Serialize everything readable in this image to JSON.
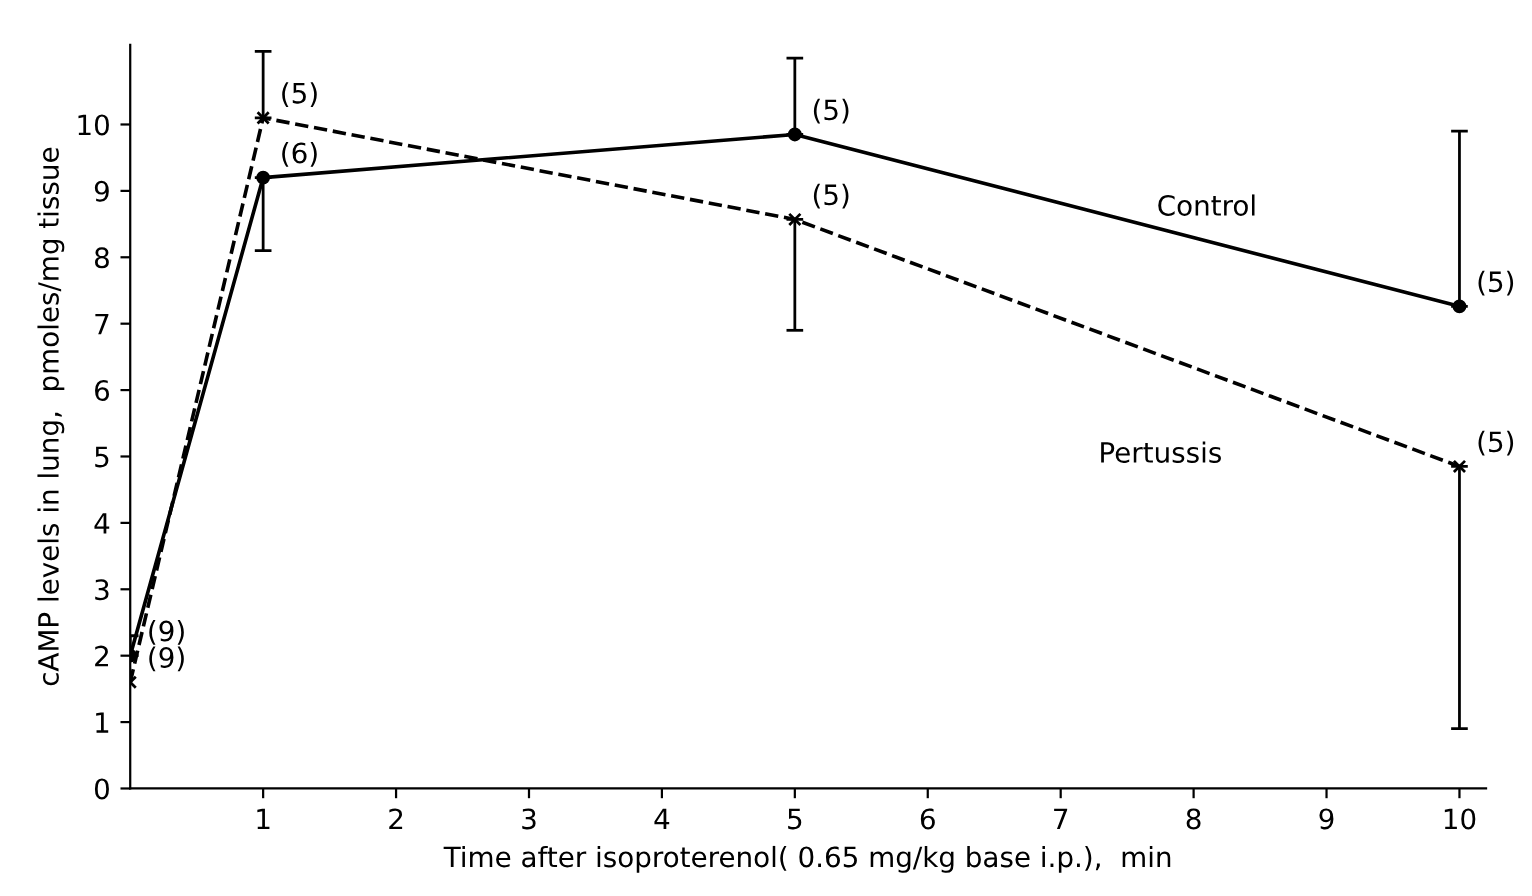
{
  "chart_data": {
    "type": "line",
    "xlabel": "Time after isoproterenol( 0.65 mg/kg base i.p.),  min",
    "ylabel": "cAMP levels in lung,  pmoles/mg tissue",
    "x": [
      0,
      1,
      5,
      10
    ],
    "xlim": [
      0,
      10.2
    ],
    "xticks": [
      1,
      2,
      3,
      4,
      5,
      6,
      7,
      8,
      9,
      10
    ],
    "ylim": [
      0,
      11.2
    ],
    "yticks": [
      0,
      1,
      2,
      3,
      4,
      5,
      6,
      7,
      8,
      9,
      10
    ],
    "grid": false,
    "series": [
      {
        "name": "Control",
        "color": "#000000",
        "marker": "circle",
        "line_style": "solid",
        "values": [
          2.0,
          9.2,
          9.85,
          7.26
        ],
        "errors": [
          [
            2.0,
            2.3
          ],
          [
            8.1,
            9.2
          ],
          [
            9.85,
            11.0
          ],
          [
            7.26,
            9.9
          ]
        ]
      },
      {
        "name": "Pertussis",
        "color": "#000000",
        "marker": "cross",
        "line_style": "dashed",
        "values": [
          1.6,
          10.1,
          8.57,
          4.85
        ],
        "errors": [
          null,
          [
            10.1,
            11.1
          ],
          [
            6.9,
            8.57
          ],
          [
            0.9,
            4.85
          ]
        ]
      }
    ],
    "annotations": [
      {
        "text": "(9)",
        "x": 0,
        "y": 2.0
      },
      {
        "text": "(9)",
        "x": 0,
        "y": 1.6
      },
      {
        "text": "(6)",
        "x": 1,
        "y": 9.2
      },
      {
        "text": "(5)",
        "x": 1,
        "y": 10.1
      },
      {
        "text": "(5)",
        "x": 5,
        "y": 9.85
      },
      {
        "text": "(5)",
        "x": 5,
        "y": 8.57
      },
      {
        "text": "(5)",
        "x": 10,
        "y": 7.26
      },
      {
        "text": "(5)",
        "x": 10,
        "y": 4.85
      }
    ]
  }
}
